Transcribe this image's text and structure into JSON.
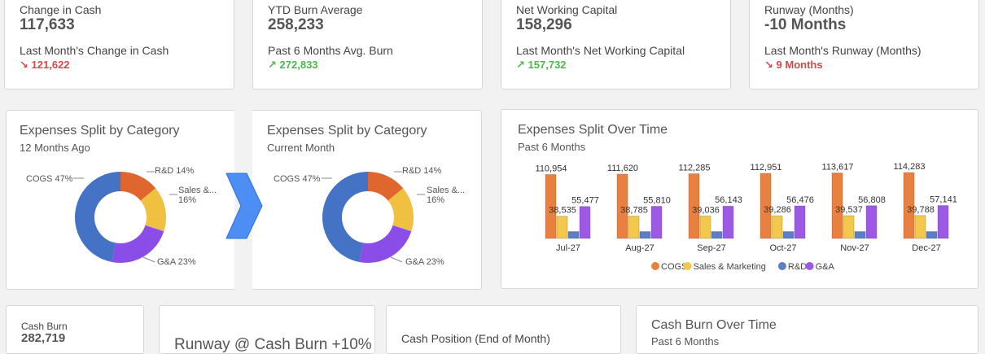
{
  "kpis": [
    {
      "label": "Change in Cash",
      "value": "117,633",
      "sublabel": "Last Month's Change in Cash",
      "delta_arrow": "↘",
      "delta": "121,622",
      "direction": "down"
    },
    {
      "label": "YTD Burn Average",
      "value": "258,233",
      "sublabel": "Past 6 Months Avg. Burn",
      "delta_arrow": "↗",
      "delta": "272,833",
      "direction": "up"
    },
    {
      "label": "Net Working Capital",
      "value": "158,296",
      "sublabel": "Last Month's Net Working Capital",
      "delta_arrow": "↗",
      "delta": "157,732",
      "direction": "up"
    },
    {
      "label": "Runway (Months)",
      "value": "-10 Months",
      "sublabel": "Last Month's Runway (Months)",
      "delta_arrow": "↘",
      "delta": "9 Months",
      "direction": "down"
    }
  ],
  "donut_left": {
    "title": "Expenses Split by Category",
    "subtitle": "12 Months Ago",
    "labels": {
      "cogs": "COGS 47%",
      "rd": "R&D 14%",
      "sales_1": "Sales &...",
      "sales_2": "16%",
      "ga": "G&A 23%"
    }
  },
  "donut_right": {
    "title": "Expenses Split by Category",
    "subtitle": "Current Month",
    "labels": {
      "cogs": "COGS 47%",
      "rd": "R&D 14%",
      "sales_1": "Sales &...",
      "sales_2": "16%",
      "ga": "G&A 23%"
    }
  },
  "donut_colors": {
    "cogs": "#4472c4",
    "rd": "#e0662f",
    "sales": "#f0c040",
    "ga": "#8a4de8"
  },
  "arrow": {
    "color": "#4d8ef5",
    "icon": "chevron-right-icon"
  },
  "bar_chart": {
    "title": "Expenses Split Over Time",
    "subtitle": "Past 6 Months"
  },
  "chart_data": {
    "type": "bar",
    "categories": [
      "Jul-27",
      "Aug-27",
      "Sep-27",
      "Oct-27",
      "Nov-27",
      "Dec-27"
    ],
    "series": [
      {
        "name": "COGS",
        "color": "#e8813f",
        "values": [
          110954,
          111620,
          112285,
          112951,
          113617,
          114283
        ],
        "labels": [
          "110,954",
          "111,620",
          "112,285",
          "112,951",
          "113,617",
          "114,283"
        ]
      },
      {
        "name": "Sales & Marketing",
        "color": "#f2c94c",
        "values": [
          38535,
          38785,
          39036,
          39286,
          39537,
          39788
        ],
        "labels": [
          "38,535",
          "38,785",
          "39,036",
          "39,286",
          "39,537",
          "39,788"
        ]
      },
      {
        "name": "R&D",
        "color": "#5b7fc7",
        "values": [
          12000,
          12000,
          12000,
          12000,
          12000,
          12000
        ],
        "labels": [
          "",
          "",
          "",
          "",
          "",
          ""
        ]
      },
      {
        "name": "G&A",
        "color": "#9b59e6",
        "values": [
          55477,
          55810,
          56143,
          56476,
          56808,
          57141
        ],
        "labels": [
          "55,477",
          "55,810",
          "56,143",
          "56,476",
          "56,808",
          "57,141"
        ]
      }
    ],
    "legend_position": "bottom"
  },
  "bottom": {
    "cash_burn_label": "Cash Burn",
    "cash_burn_value": "282,719",
    "runway_title": "Runway @ Cash Burn +10%",
    "cash_position_title": "Cash Position (End of Month)",
    "cash_burn_time_title": "Cash Burn Over Time",
    "cash_burn_time_subtitle": "Past 6 Months"
  }
}
